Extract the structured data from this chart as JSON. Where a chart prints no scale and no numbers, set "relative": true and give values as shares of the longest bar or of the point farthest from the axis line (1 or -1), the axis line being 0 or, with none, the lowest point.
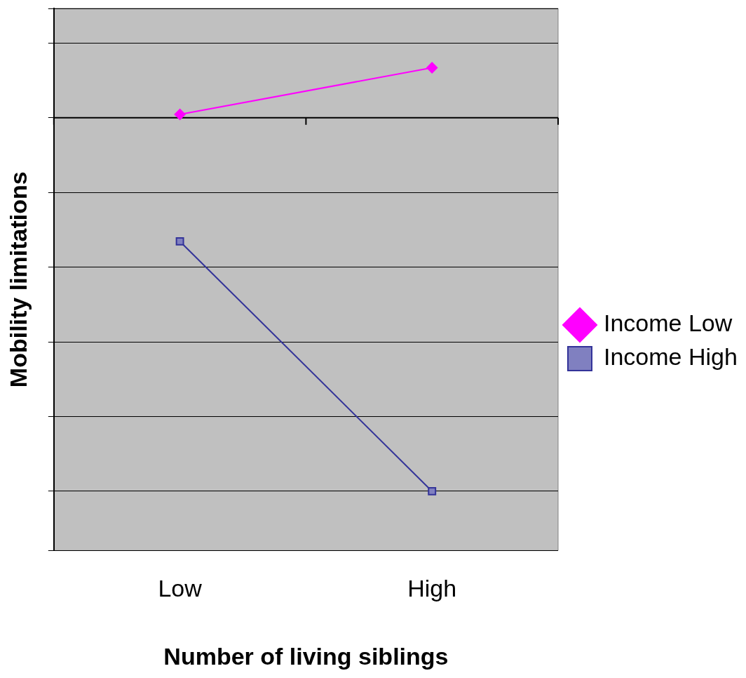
{
  "chart_data": {
    "type": "line",
    "relative": true,
    "xlabel": "Number of living siblings",
    "ylabel": "Mobility limitations",
    "categories": [
      "Low",
      "High"
    ],
    "series": [
      {
        "name": "Income Low",
        "color": "#ff00ff",
        "marker": "diamond",
        "values": [
          0.009,
          0.134
        ]
      },
      {
        "name": "Income High",
        "color": "#333399",
        "marker": "square",
        "values": [
          -0.331,
          -1
        ]
      }
    ],
    "grid": "y",
    "legend": "right"
  }
}
